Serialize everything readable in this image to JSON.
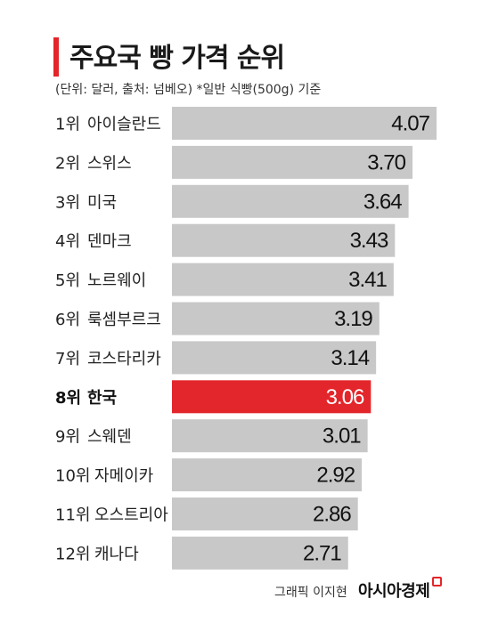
{
  "header": {
    "title": "주요국 빵 가격 순위",
    "subtitle": "(단위: 달러, 출처: 넘베오)  *일반 식빵(500g) 기준"
  },
  "footer": {
    "credit": "그래픽 이지현",
    "brand": "아시아경제"
  },
  "colors": {
    "accent": "#e3262b",
    "bar": "#c8c8c8",
    "highlight_bar": "#e3262b"
  },
  "chart_data": {
    "type": "bar",
    "orientation": "horizontal",
    "title": "주요국 빵 가격 순위",
    "subtitle": "(단위: 달러, 출처: 넘베오)  *일반 식빵(500g) 기준",
    "ranks": [
      "1위",
      "2위",
      "3위",
      "4위",
      "5위",
      "6위",
      "7위",
      "8위",
      "9위",
      "10위",
      "11위",
      "12위"
    ],
    "categories": [
      "아이슬란드",
      "스위스",
      "미국",
      "덴마크",
      "노르웨이",
      "룩셈부르크",
      "코스타리카",
      "한국",
      "스웨덴",
      "자메이카",
      "오스트리아",
      "캐나다"
    ],
    "values": [
      4.07,
      3.7,
      3.64,
      3.43,
      3.41,
      3.19,
      3.14,
      3.06,
      3.01,
      2.92,
      2.86,
      2.71
    ],
    "value_labels": [
      "4.07",
      "3.70",
      "3.64",
      "3.43",
      "3.41",
      "3.19",
      "3.14",
      "3.06",
      "3.01",
      "2.92",
      "2.86",
      "2.71"
    ],
    "highlight_index": 7,
    "xlim": [
      0,
      4.07
    ],
    "grid": false,
    "legend": "none"
  }
}
